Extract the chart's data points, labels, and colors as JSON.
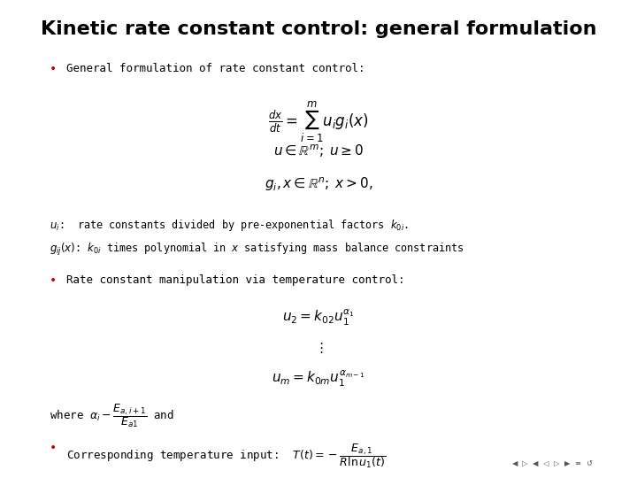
{
  "title": "Kinetic rate constant control: general formulation",
  "background_color": "#ffffff",
  "title_fontsize": 16,
  "title_fontweight": "bold",
  "bullet_color": "#cc0000",
  "text_color": "#000000",
  "bullet1_text": "General formulation of rate constant control:",
  "eq1": "\\frac{dx}{dt} = \\sum_{i=1}^{m} u_i g_i(x)",
  "eq2": "u \\in \\mathbb{R}^m;\\; u \\geq 0",
  "eq3": "g_i, x \\in \\mathbb{R}^n;\\; x > 0,",
  "desc1": "$u_i$:  rate constants divided by pre-exponential factors $k_{0i}$.",
  "desc2": "$g_{ij}(x)$: $k_{0i}$ times polynomial in $x$ satisfying mass balance constraints",
  "bullet2_text": "Rate constant manipulation via temperature control:",
  "eq4": "u_2 = k_{02} u_1^{\\alpha_1}",
  "eq5": "\\vdots",
  "eq6": "u_m = k_{0m} u_1^{\\alpha_{m-1}}",
  "where_text": "where $\\alpha_i - \\dfrac{E_{a,i+1}}{E_{a1}}$ and",
  "bullet3_text": "Corresponding temperature input:  $T(t) = -\\dfrac{E_{a,1}}{R\\ln u_1(t)}$",
  "nav_text": "\\blacktriangleleft \\, \\triangleright \\, \\blacktriangleleft \\, \\blacktriangleleft \\, \\triangleleft \\, \\triangleright \\, \\blacktriangleleft \\, \\blacktriangleright \\, \\equiv \\, \\circlearrowleft"
}
